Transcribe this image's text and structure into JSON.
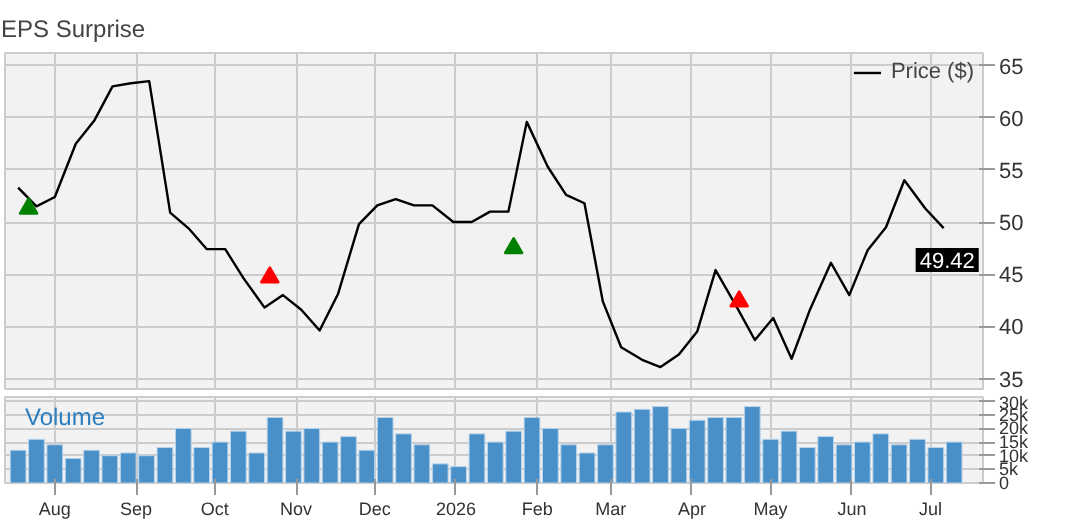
{
  "chart_data": [
    {
      "type": "line",
      "title": "EPS Surprise",
      "legend": "top right",
      "grid": true,
      "tick_labels": "y",
      "xlim": [
        "2025-07-13",
        "2026-07-21"
      ],
      "xticks": [
        {
          "value": "2025-08-01",
          "label": null
        },
        {
          "value": "2025-09-01",
          "label": null
        },
        {
          "value": "2025-10-01",
          "label": null
        },
        {
          "value": "2025-11-01",
          "label": null
        },
        {
          "value": "2025-12-01",
          "label": null
        },
        {
          "value": "2026-01-01",
          "label": null
        },
        {
          "value": "2026-02-01",
          "label": null
        },
        {
          "value": "2026-03-01",
          "label": null
        },
        {
          "value": "2026-04-01",
          "label": null
        },
        {
          "value": "2026-05-01",
          "label": null
        },
        {
          "value": "2026-06-01",
          "label": null
        },
        {
          "value": "2026-07-01",
          "label": null
        }
      ],
      "ylim": [
        34,
        66.2
      ],
      "yticks": [
        35,
        40,
        45,
        50,
        55,
        60,
        65
      ],
      "annotations": [
        {
          "text": "49.42",
          "x": "2026-07-06",
          "y": 49.42
        }
      ],
      "series": [
        {
          "name": "Price ($)",
          "type": "line",
          "color": "#000000",
          "x": [
            "2025-07-18",
            "2025-07-25",
            "2025-08-01",
            "2025-08-09",
            "2025-08-16",
            "2025-08-23",
            "2025-08-30",
            "2025-09-06",
            "2025-09-14",
            "2025-09-21",
            "2025-09-28",
            "2025-10-05",
            "2025-10-12",
            "2025-10-20",
            "2025-10-27",
            "2025-11-03",
            "2025-11-10",
            "2025-11-17",
            "2025-11-25",
            "2025-12-02",
            "2025-12-09",
            "2025-12-16",
            "2025-12-23",
            "2025-12-31",
            "2026-01-07",
            "2026-01-14",
            "2026-01-21",
            "2026-01-28",
            "2026-02-05",
            "2026-02-12",
            "2026-02-19",
            "2026-02-26",
            "2026-03-05",
            "2026-03-13",
            "2026-03-20",
            "2026-03-27",
            "2026-04-03",
            "2026-04-10",
            "2026-04-18",
            "2026-04-25",
            "2026-05-02",
            "2026-05-09",
            "2026-05-16",
            "2026-05-24",
            "2026-05-31",
            "2026-06-07",
            "2026-06-14",
            "2026-06-21",
            "2026-06-29",
            "2026-07-06"
          ],
          "values": [
            53.3,
            51.5,
            52.4,
            57.5,
            59.7,
            63.0,
            63.3,
            63.5,
            50.9,
            49.4,
            47.4,
            47.4,
            44.6,
            41.8,
            43.0,
            41.6,
            39.6,
            43.1,
            49.8,
            51.6,
            52.2,
            51.6,
            51.6,
            50.0,
            50.0,
            51.0,
            51.0,
            59.6,
            55.3,
            52.6,
            51.8,
            42.4,
            38.0,
            36.8,
            36.1,
            37.3,
            39.5,
            45.4,
            41.9,
            38.7,
            40.8,
            36.9,
            41.6,
            46.1,
            43.0,
            47.3,
            49.5,
            54.0,
            51.3,
            49.42
          ]
        },
        {
          "type": "scatter",
          "marker": "triangle",
          "color": "#008000",
          "x": [
            "2025-07-22",
            "2026-01-23"
          ],
          "values": [
            51.3,
            47.5
          ]
        },
        {
          "type": "scatter",
          "marker": "triangle",
          "color": "#ff0000",
          "x": [
            "2025-10-22",
            "2026-04-19"
          ],
          "values": [
            44.7,
            42.4
          ]
        }
      ]
    },
    {
      "type": "bar",
      "grid": true,
      "annotations": [
        "Volume"
      ],
      "xlim": [
        "2025-07-13",
        "2026-07-21"
      ],
      "xticks": [
        {
          "value": "2025-08-01",
          "label": "Aug"
        },
        {
          "value": "2025-09-01",
          "label": "Sep"
        },
        {
          "value": "2025-10-01",
          "label": "Oct"
        },
        {
          "value": "2025-11-01",
          "label": "Nov"
        },
        {
          "value": "2025-12-01",
          "label": "Dec"
        },
        {
          "value": "2026-01-01",
          "label": "2026"
        },
        {
          "value": "2026-02-01",
          "label": "Feb"
        },
        {
          "value": "2026-03-01",
          "label": "Mar"
        },
        {
          "value": "2026-04-01",
          "label": "Apr"
        },
        {
          "value": "2026-05-01",
          "label": "May"
        },
        {
          "value": "2026-06-01",
          "label": "Jun"
        },
        {
          "value": "2026-07-01",
          "label": "Jul"
        }
      ],
      "ylim": [
        0,
        31500
      ],
      "yticks": [
        {
          "value": 0,
          "label": "0"
        },
        {
          "value": 5000,
          "label": "5k"
        },
        {
          "value": 10000,
          "label": "10k"
        },
        {
          "value": 15000,
          "label": "15k"
        },
        {
          "value": 20000,
          "label": "20k"
        },
        {
          "value": 25000,
          "label": "25k"
        },
        {
          "value": 30000,
          "label": "30k"
        }
      ],
      "series": [
        {
          "color": "#4a90c8",
          "x": [
            "2025-07-18",
            "2025-07-25",
            "2025-08-01",
            "2025-08-08",
            "2025-08-15",
            "2025-08-22",
            "2025-08-29",
            "2025-09-05",
            "2025-09-12",
            "2025-09-19",
            "2025-09-26",
            "2025-10-03",
            "2025-10-10",
            "2025-10-17",
            "2025-10-24",
            "2025-10-31",
            "2025-11-07",
            "2025-11-14",
            "2025-11-21",
            "2025-11-28",
            "2025-12-05",
            "2025-12-12",
            "2025-12-19",
            "2025-12-26",
            "2026-01-02",
            "2026-01-09",
            "2026-01-16",
            "2026-01-23",
            "2026-01-30",
            "2026-02-06",
            "2026-02-13",
            "2026-02-20",
            "2026-02-27",
            "2026-03-06",
            "2026-03-13",
            "2026-03-20",
            "2026-03-27",
            "2026-04-03",
            "2026-04-10",
            "2026-04-17",
            "2026-04-24",
            "2026-05-01",
            "2026-05-08",
            "2026-05-15",
            "2026-05-22",
            "2026-05-29",
            "2026-06-05",
            "2026-06-12",
            "2026-06-19",
            "2026-06-26",
            "2026-07-03",
            "2026-07-10"
          ],
          "values": [
            12000,
            16000,
            14000,
            9000,
            12000,
            10000,
            11000,
            10000,
            13000,
            20000,
            13000,
            15000,
            19000,
            11000,
            24000,
            19000,
            20000,
            15000,
            17000,
            12000,
            24000,
            18000,
            14000,
            7000,
            6000,
            18000,
            15000,
            19000,
            24000,
            20000,
            14000,
            11000,
            14000,
            26000,
            27000,
            28000,
            20000,
            23000,
            24000,
            24000,
            28000,
            16000,
            19000,
            13000,
            17000,
            14000,
            15000,
            18000,
            14000,
            16000,
            13000,
            15000
          ]
        }
      ]
    }
  ]
}
